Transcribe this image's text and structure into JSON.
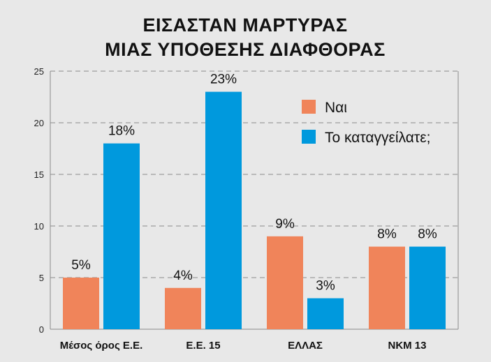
{
  "chart_data": {
    "type": "bar",
    "title_lines": [
      "ΕΙΣΑΣΤΑΝ ΜΑΡΤΥΡΑΣ",
      "ΜΙΑΣ ΥΠΟΘΕΣΗΣ ΔΙΑΦΘΟΡΑΣ"
    ],
    "categories": [
      "Μέσος όρος Ε.Ε.",
      "Ε.Ε. 15",
      "ΕΛΛΑΣ",
      "ΝΚΜ 13"
    ],
    "series": [
      {
        "name": "Ναι",
        "color": "#f0845a",
        "values": [
          5,
          4,
          9,
          8
        ],
        "labels": [
          "5%",
          "4%",
          "9%",
          "8%"
        ]
      },
      {
        "name": "Το καταγγείλατε;",
        "color": "#0099dd",
        "values": [
          18,
          23,
          3,
          8
        ],
        "labels": [
          "18%",
          "23%",
          "3%",
          "8%"
        ]
      }
    ],
    "ylim": [
      0,
      25
    ],
    "yticks": [
      "0",
      "5",
      "10",
      "15",
      "20",
      "25"
    ],
    "grid": true,
    "legend_position": "top-right"
  }
}
